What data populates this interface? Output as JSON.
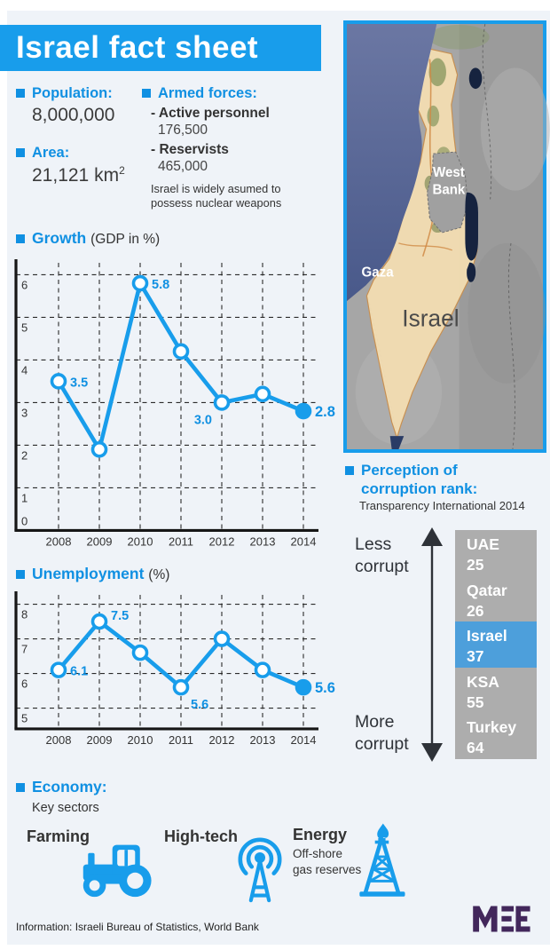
{
  "colors": {
    "accent": "#189deb",
    "heading_blue": "#1090e2",
    "panel_bg": "#eff3f8",
    "column_gray": "#adadad",
    "israel_highlight": "#4d9fdb",
    "logo_purple": "#42275b",
    "map_sea": "#5a6b9b",
    "israel_fill": "#f3ddb2"
  },
  "title": "Israel fact sheet",
  "facts": {
    "population_label": "Population:",
    "population_value": "8,000,000",
    "area_label": "Area:",
    "area_value": "21,121 km",
    "area_sup": "2",
    "armed_label": "Armed forces:",
    "armed_items": [
      {
        "label": "- Active personnel",
        "value": "176,500"
      },
      {
        "label": "- Reservists",
        "value": "465,000"
      }
    ],
    "armed_note_line1": "Israel is widely asumed to",
    "armed_note_line2": "possess nuclear weapons"
  },
  "chart_data": [
    {
      "type": "line",
      "title": "Growth",
      "title_suffix": "(GDP in %)",
      "x": [
        "2008",
        "2009",
        "2010",
        "2011",
        "2012",
        "2013",
        "2014"
      ],
      "values": [
        3.5,
        1.9,
        5.8,
        4.2,
        3.0,
        3.2,
        2.8
      ],
      "yticks": [
        0,
        1,
        2,
        3,
        4,
        5,
        6
      ],
      "ylim": [
        0,
        6.3
      ],
      "grid": "dashed",
      "legend": "none",
      "last_point_filled": true,
      "point_labels": [
        {
          "index": 0,
          "text": "3.5",
          "pos": "right"
        },
        {
          "index": 2,
          "text": "5.8",
          "pos": "right"
        },
        {
          "index": 4,
          "text": "3.0",
          "pos": "left-below"
        },
        {
          "index": 6,
          "text": "2.8",
          "pos": "right",
          "emphasis": true
        }
      ]
    },
    {
      "type": "line",
      "title": "Unemployment",
      "title_suffix": "(%)",
      "x": [
        "2008",
        "2009",
        "2010",
        "2011",
        "2012",
        "2013",
        "2014"
      ],
      "values": [
        6.1,
        7.5,
        6.6,
        5.6,
        7.0,
        6.1,
        5.6
      ],
      "yticks": [
        5,
        6,
        7,
        8
      ],
      "ylim": [
        4.4,
        8.3
      ],
      "grid": "dashed",
      "legend": "none",
      "last_point_filled": true,
      "point_labels": [
        {
          "index": 0,
          "text": "6.1",
          "pos": "right"
        },
        {
          "index": 1,
          "text": "7.5",
          "pos": "right-above"
        },
        {
          "index": 3,
          "text": "5.6",
          "pos": "right-below"
        },
        {
          "index": 6,
          "text": "5.6",
          "pos": "right",
          "emphasis": true
        }
      ]
    }
  ],
  "map": {
    "labels": {
      "west_bank_line1": "West",
      "west_bank_line2": "Bank",
      "gaza": "Gaza",
      "israel": "Israel"
    }
  },
  "corruption": {
    "heading_line1": "Perception of",
    "heading_line2": "corruption rank:",
    "subtitle": "Transparency International 2014",
    "less_line1": "Less",
    "less_line2": "corrupt",
    "more_line1": "More",
    "more_line2": "corrupt",
    "entries": [
      {
        "country": "UAE",
        "rank": "25",
        "highlight": false
      },
      {
        "country": "Qatar",
        "rank": "26",
        "highlight": false
      },
      {
        "country": "Israel",
        "rank": "37",
        "highlight": true
      },
      {
        "country": "KSA",
        "rank": "55",
        "highlight": false
      },
      {
        "country": "Turkey",
        "rank": "64",
        "highlight": false
      }
    ]
  },
  "economy": {
    "heading": "Economy:",
    "subheading": "Key sectors",
    "sectors": [
      {
        "name": "Farming",
        "icon": "tractor-icon"
      },
      {
        "name": "High-tech",
        "icon": "antenna-icon"
      },
      {
        "name": "Energy",
        "icon": "oil-rig-icon",
        "note_line1": "Off-shore",
        "note_line2": "gas reserves"
      }
    ]
  },
  "footer": "Information: Israeli Bureau of Statistics, World Bank",
  "logo_text": "MEE"
}
